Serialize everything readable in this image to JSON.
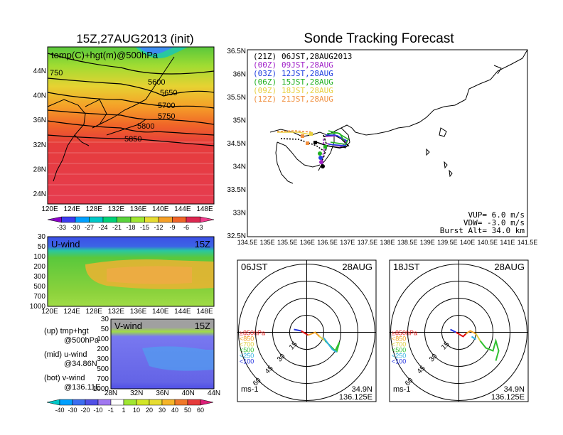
{
  "left_map": {
    "title": "15Z,27AUG2013 (init)",
    "label": "temp(C)+hgt(m)@500hPa",
    "lat_ticks": [
      "44N",
      "40N",
      "36N",
      "32N",
      "28N",
      "24N"
    ],
    "lon_ticks": [
      "120E",
      "124E",
      "128E",
      "132E",
      "136E",
      "140E",
      "144E",
      "148E"
    ],
    "contours": [
      "750",
      "5600",
      "5650",
      "5700",
      "5750",
      "5800",
      "5850"
    ],
    "colorbar": [
      "-33",
      "-30",
      "-27",
      "-24",
      "-21",
      "-18",
      "-15",
      "-12",
      "-9",
      "-6",
      "-3"
    ],
    "colorbar_colors": [
      "#8a00c8",
      "#3c3cf0",
      "#00a0ff",
      "#00c8c8",
      "#00d278",
      "#5ad23c",
      "#a0e632",
      "#e6dc32",
      "#f5a028",
      "#f06428",
      "#dc2850",
      "#f03c8c"
    ]
  },
  "u_panel": {
    "label": "U-wind",
    "time": "15Z",
    "y_ticks": [
      "30",
      "50",
      "100",
      "200",
      "300",
      "500",
      "700",
      "1000"
    ],
    "x_ticks": [
      "120E",
      "124E",
      "128E",
      "132E",
      "136E",
      "140E",
      "144E",
      "148E"
    ]
  },
  "v_panel": {
    "label": "V-wind",
    "time": "15Z",
    "y_ticks": [
      "30",
      "50",
      "100",
      "200",
      "300",
      "500",
      "700",
      "1000"
    ],
    "x_ticks": [
      "28N",
      "32N",
      "36N",
      "40N",
      "44N"
    ],
    "colorbar": [
      "-40",
      "-30",
      "-20",
      "-10",
      "-1",
      "1",
      "10",
      "20",
      "30",
      "40",
      "50",
      "60"
    ],
    "colorbar_colors": [
      "#00c8c8",
      "#00a0ff",
      "#3c6ef0",
      "#5050e6",
      "#a078f0",
      "#ffffff",
      "#a0e632",
      "#d2e628",
      "#e6dc32",
      "#f5b428",
      "#f07828",
      "#e63c3c",
      "#dc1e78"
    ]
  },
  "legend_notes": [
    {
      "a": "(up) tmp+hgt",
      "b": "@500hPa"
    },
    {
      "a": "(mid) u-wind",
      "b": "@34.86N"
    },
    {
      "a": "(bot) v-wind",
      "b": "@136.11E"
    }
  ],
  "tracking": {
    "title": "Sonde Tracking Forecast",
    "lat_ticks": [
      "36.5N",
      "36N",
      "35.5N",
      "35N",
      "34.5N",
      "34N",
      "33.5N",
      "33N",
      "32.5N"
    ],
    "lon_ticks": [
      "134.5E",
      "135E",
      "135.5E",
      "136E",
      "136.5E",
      "137E",
      "137.5E",
      "138E",
      "138.5E",
      "139E",
      "139.5E",
      "140E",
      "140.5E",
      "141E",
      "141.5E"
    ],
    "launches": [
      {
        "z": "(21Z)",
        "t": "06JST,28AUG2013",
        "color": "#000000"
      },
      {
        "z": "(00Z)",
        "t": "09JST,28AUG",
        "color": "#a020c8"
      },
      {
        "z": "(03Z)",
        "t": "12JST,28AUG",
        "color": "#2040e0"
      },
      {
        "z": "(06Z)",
        "t": "15JST,28AUG",
        "color": "#20b020"
      },
      {
        "z": "(09Z)",
        "t": "18JST,28AUG",
        "color": "#e8d040"
      },
      {
        "z": "(12Z)",
        "t": "21JST,28AUG",
        "color": "#f09040"
      }
    ],
    "vup": "VUP=  6.0 m/s",
    "vdw": "VDW= -3.0 m/s",
    "burst": "Burst Alt= 34.0 km"
  },
  "hodographs": [
    {
      "time": "06JST",
      "date": "28AUG",
      "lat": "34.9N",
      "lon": "136.125E",
      "unit": "ms-1"
    },
    {
      "time": "18JST",
      "date": "28AUG",
      "lat": "34.9N",
      "lon": "136.125E",
      "unit": "ms-1"
    }
  ],
  "hodo_rings": [
    "15",
    "30",
    "45",
    "60"
  ],
  "hodo_levels": [
    {
      "label": "≥850hPa",
      "color": "#e01010"
    },
    {
      "label": "<850",
      "color": "#f0a020"
    },
    {
      "label": "<700",
      "color": "#e0d040"
    },
    {
      "label": "<500",
      "color": "#30c030"
    },
    {
      "label": "<250",
      "color": "#30b0e0"
    },
    {
      "label": "<100",
      "color": "#2030e0"
    }
  ]
}
